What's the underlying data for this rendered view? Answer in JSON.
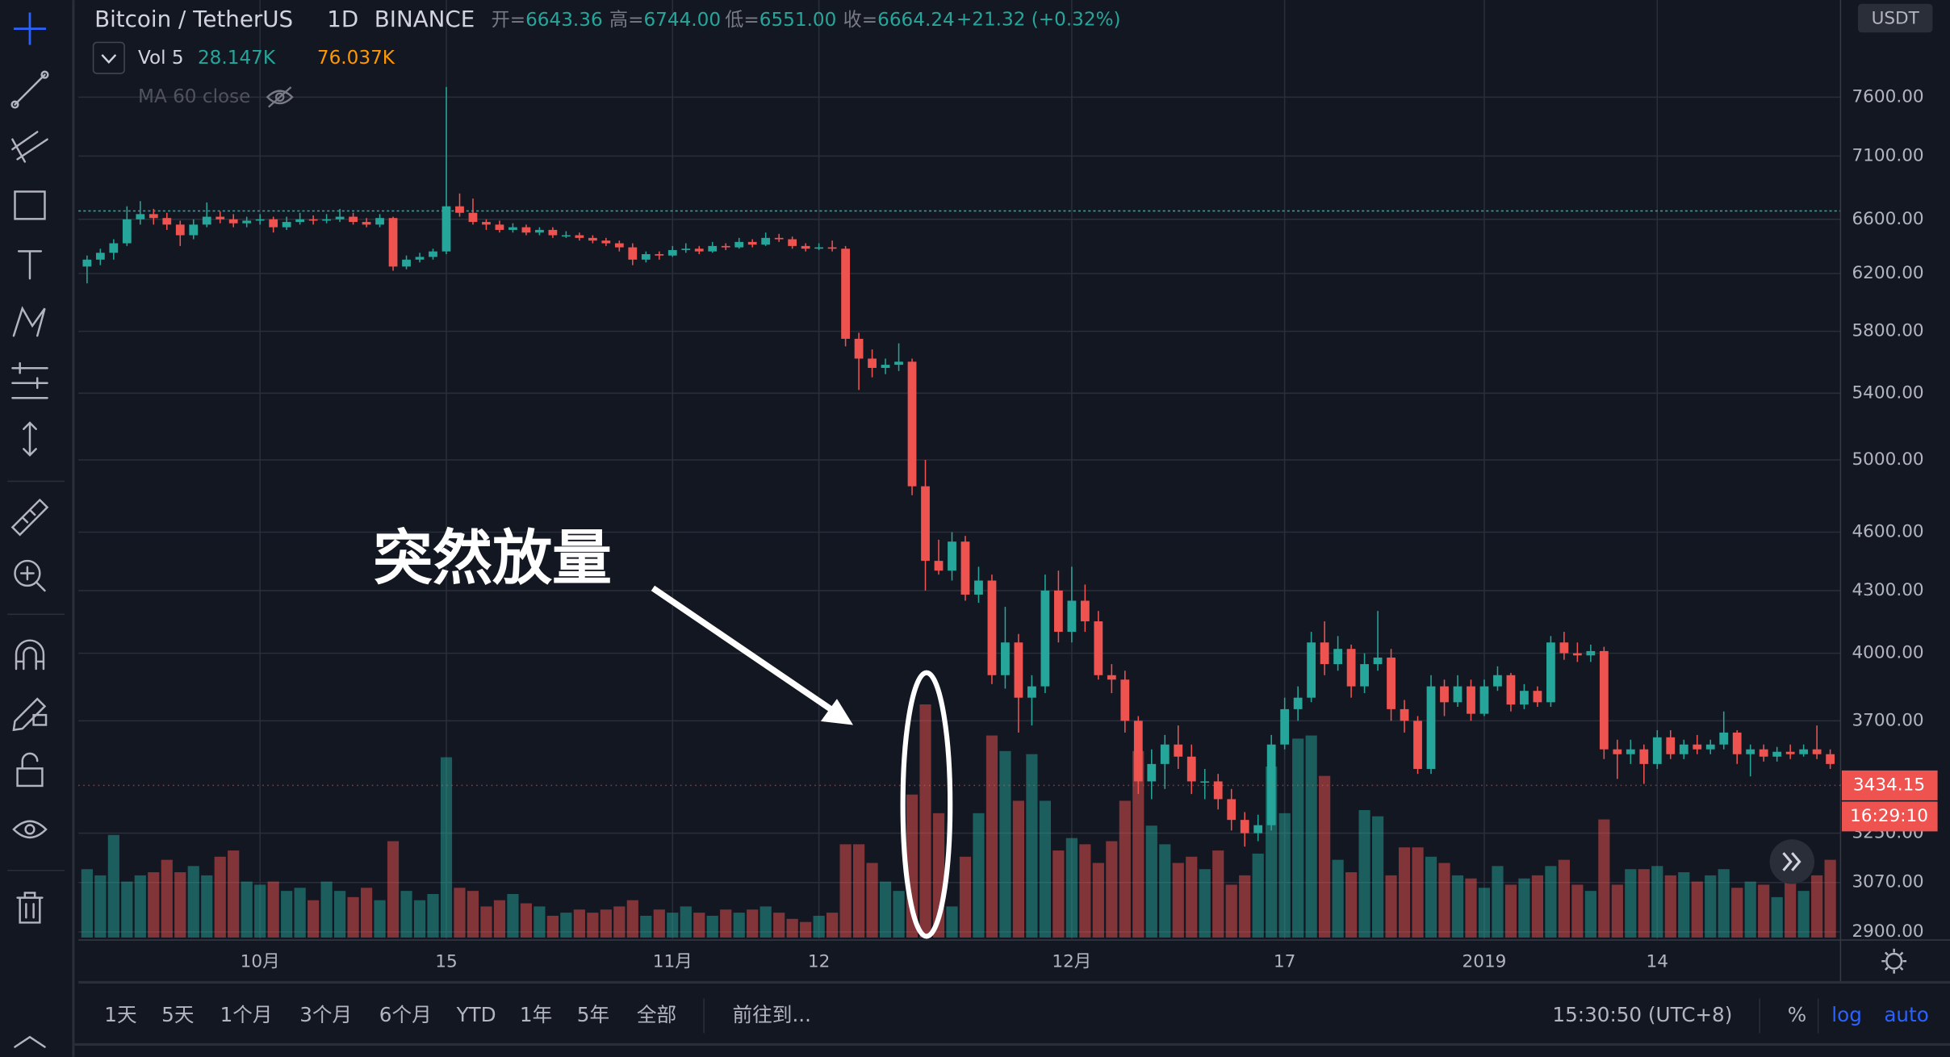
{
  "header": {
    "symbol": "Bitcoin / TetherUS",
    "interval": "1D",
    "exchange": "BINANCE",
    "ohlc": [
      {
        "label": "开=",
        "value": "6643.36"
      },
      {
        "label": "高=",
        "value": "6744.00"
      },
      {
        "label": "低=",
        "value": "6551.00"
      },
      {
        "label": "收=",
        "value": "6664.24"
      }
    ],
    "change": "+21.32 (+0.32%)"
  },
  "indicators": {
    "volume": {
      "name": "Vol 5",
      "values": [
        "28.147K",
        "76.037K"
      ]
    },
    "ma": "MA 60 close"
  },
  "currency": "USDT",
  "countdown": "16:29:10",
  "annotation": "突然放量",
  "bottom_bar": {
    "ranges": [
      "1天",
      "5天",
      "1个月",
      "3个月",
      "6个月",
      "YTD",
      "1年",
      "5年",
      "全部"
    ],
    "goto": "前往到...",
    "time": "15:30:50 (UTC+8)",
    "percent": "%",
    "log": "log",
    "auto": "auto"
  },
  "chart_data": {
    "type": "candlestick",
    "log_scale": true,
    "grid": true,
    "up_color": "#26a69a",
    "down_color": "#ef5350",
    "ylim": [
      2877,
      8500
    ],
    "yticks": [
      {
        "value": 2900,
        "label": "2900.00"
      },
      {
        "value": 3070,
        "label": "3070.00"
      },
      {
        "value": 3250,
        "label": "3250.00"
      },
      {
        "value": 3700,
        "label": "3700.00"
      },
      {
        "value": 4000,
        "label": "4000.00"
      },
      {
        "value": 4300,
        "label": "4300.00"
      },
      {
        "value": 4600,
        "label": "4600.00"
      },
      {
        "value": 5000,
        "label": "5000.00"
      },
      {
        "value": 5400,
        "label": "5400.00"
      },
      {
        "value": 5800,
        "label": "5800.00"
      },
      {
        "value": 6200,
        "label": "6200.00"
      },
      {
        "value": 6600,
        "label": "6600.00"
      },
      {
        "value": 7100,
        "label": "7100.00"
      },
      {
        "value": 7600,
        "label": "7600.00"
      }
    ],
    "price_line": 6664.24,
    "last_price": 3434.15,
    "categories": [
      null,
      null,
      null,
      null,
      null,
      null,
      null,
      null,
      null,
      null,
      null,
      null,
      null,
      "10月",
      null,
      null,
      null,
      null,
      null,
      null,
      null,
      null,
      null,
      null,
      null,
      null,
      null,
      "15",
      null,
      null,
      null,
      null,
      null,
      null,
      null,
      null,
      null,
      null,
      null,
      null,
      null,
      null,
      null,
      null,
      "11月",
      null,
      null,
      null,
      null,
      null,
      null,
      null,
      null,
      null,
      null,
      "12",
      null,
      null,
      null,
      null,
      null,
      null,
      null,
      null,
      null,
      null,
      null,
      null,
      null,
      null,
      null,
      null,
      null,
      null,
      "12月",
      null,
      null,
      null,
      null,
      null,
      null,
      null,
      null,
      null,
      null,
      null,
      null,
      null,
      null,
      null,
      "17",
      null,
      null,
      null,
      null,
      null,
      null,
      null,
      null,
      null,
      null,
      null,
      null,
      null,
      null,
      "2019",
      null,
      null,
      null,
      null,
      null,
      null,
      null,
      null,
      null,
      null,
      null,
      null,
      "14",
      null,
      null,
      null,
      null,
      null,
      null,
      null,
      null,
      null,
      null,
      null,
      null,
      null
    ],
    "ohlc": [
      [
        6250,
        6330,
        6130,
        6300
      ],
      [
        6300,
        6380,
        6260,
        6350
      ],
      [
        6350,
        6450,
        6300,
        6420
      ],
      [
        6420,
        6700,
        6400,
        6600
      ],
      [
        6600,
        6740,
        6560,
        6640
      ],
      [
        6640,
        6680,
        6560,
        6610
      ],
      [
        6610,
        6650,
        6520,
        6560
      ],
      [
        6560,
        6590,
        6400,
        6480
      ],
      [
        6480,
        6600,
        6450,
        6560
      ],
      [
        6560,
        6730,
        6540,
        6620
      ],
      [
        6620,
        6660,
        6570,
        6600
      ],
      [
        6600,
        6640,
        6540,
        6570
      ],
      [
        6570,
        6620,
        6540,
        6590
      ],
      [
        6590,
        6640,
        6560,
        6600
      ],
      [
        6600,
        6620,
        6500,
        6540
      ],
      [
        6540,
        6620,
        6520,
        6580
      ],
      [
        6580,
        6650,
        6560,
        6600
      ],
      [
        6600,
        6630,
        6560,
        6590
      ],
      [
        6590,
        6640,
        6570,
        6600
      ],
      [
        6600,
        6680,
        6580,
        6620
      ],
      [
        6620,
        6650,
        6560,
        6580
      ],
      [
        6580,
        6610,
        6540,
        6560
      ],
      [
        6560,
        6640,
        6540,
        6610
      ],
      [
        6610,
        6620,
        6220,
        6250
      ],
      [
        6250,
        6330,
        6230,
        6300
      ],
      [
        6300,
        6350,
        6280,
        6320
      ],
      [
        6320,
        6380,
        6300,
        6360
      ],
      [
        6360,
        7690,
        6340,
        6700
      ],
      [
        6700,
        6800,
        6620,
        6650
      ],
      [
        6650,
        6760,
        6560,
        6580
      ],
      [
        6580,
        6600,
        6520,
        6560
      ],
      [
        6560,
        6590,
        6500,
        6520
      ],
      [
        6520,
        6570,
        6500,
        6540
      ],
      [
        6540,
        6560,
        6480,
        6500
      ],
      [
        6500,
        6540,
        6480,
        6520
      ],
      [
        6520,
        6540,
        6460,
        6480
      ],
      [
        6480,
        6510,
        6460,
        6480
      ],
      [
        6480,
        6500,
        6440,
        6460
      ],
      [
        6460,
        6480,
        6420,
        6440
      ],
      [
        6440,
        6460,
        6400,
        6420
      ],
      [
        6420,
        6440,
        6360,
        6390
      ],
      [
        6390,
        6420,
        6260,
        6300
      ],
      [
        6300,
        6360,
        6280,
        6340
      ],
      [
        6340,
        6360,
        6300,
        6330
      ],
      [
        6330,
        6400,
        6320,
        6370
      ],
      [
        6370,
        6420,
        6350,
        6380
      ],
      [
        6380,
        6400,
        6340,
        6360
      ],
      [
        6360,
        6430,
        6350,
        6400
      ],
      [
        6400,
        6420,
        6370,
        6390
      ],
      [
        6390,
        6460,
        6380,
        6430
      ],
      [
        6430,
        6450,
        6390,
        6410
      ],
      [
        6410,
        6500,
        6400,
        6460
      ],
      [
        6460,
        6490,
        6430,
        6450
      ],
      [
        6450,
        6470,
        6380,
        6400
      ],
      [
        6400,
        6420,
        6360,
        6380
      ],
      [
        6380,
        6420,
        6370,
        6390
      ],
      [
        6390,
        6440,
        6360,
        6380
      ],
      [
        6380,
        6400,
        5700,
        5750
      ],
      [
        5750,
        5790,
        5420,
        5620
      ],
      [
        5620,
        5680,
        5500,
        5560
      ],
      [
        5560,
        5620,
        5520,
        5580
      ],
      [
        5580,
        5720,
        5540,
        5600
      ],
      [
        5600,
        5620,
        4800,
        4850
      ],
      [
        4850,
        5000,
        4300,
        4450
      ],
      [
        4450,
        4560,
        4380,
        4400
      ],
      [
        4400,
        4600,
        4350,
        4550
      ],
      [
        4550,
        4580,
        4250,
        4280
      ],
      [
        4280,
        4420,
        4240,
        4350
      ],
      [
        4350,
        4380,
        3860,
        3900
      ],
      [
        3900,
        4220,
        3840,
        4050
      ],
      [
        4050,
        4090,
        3650,
        3800
      ],
      [
        3800,
        3900,
        3680,
        3850
      ],
      [
        3850,
        4380,
        3820,
        4300
      ],
      [
        4300,
        4400,
        4050,
        4100
      ],
      [
        4100,
        4420,
        4050,
        4250
      ],
      [
        4250,
        4330,
        4100,
        4150
      ],
      [
        4150,
        4200,
        3880,
        3900
      ],
      [
        3900,
        3950,
        3820,
        3880
      ],
      [
        3880,
        3920,
        3650,
        3700
      ],
      [
        3700,
        3720,
        3400,
        3450
      ],
      [
        3450,
        3580,
        3380,
        3520
      ],
      [
        3520,
        3640,
        3420,
        3600
      ],
      [
        3600,
        3680,
        3500,
        3550
      ],
      [
        3550,
        3600,
        3400,
        3450
      ],
      [
        3450,
        3500,
        3380,
        3450
      ],
      [
        3450,
        3480,
        3340,
        3380
      ],
      [
        3380,
        3420,
        3260,
        3300
      ],
      [
        3300,
        3330,
        3200,
        3250
      ],
      [
        3250,
        3320,
        3220,
        3280
      ],
      [
        3280,
        3640,
        3260,
        3600
      ],
      [
        3600,
        3800,
        3580,
        3750
      ],
      [
        3750,
        3850,
        3700,
        3800
      ],
      [
        3800,
        4100,
        3780,
        4050
      ],
      [
        4050,
        4150,
        3900,
        3950
      ],
      [
        3950,
        4080,
        3920,
        4020
      ],
      [
        4020,
        4040,
        3800,
        3850
      ],
      [
        3850,
        4000,
        3820,
        3950
      ],
      [
        3950,
        4200,
        3920,
        3980
      ],
      [
        3980,
        4020,
        3700,
        3750
      ],
      [
        3750,
        3790,
        3650,
        3700
      ],
      [
        3700,
        3720,
        3480,
        3500
      ],
      [
        3500,
        3900,
        3480,
        3850
      ],
      [
        3850,
        3880,
        3720,
        3780
      ],
      [
        3780,
        3900,
        3760,
        3850
      ],
      [
        3850,
        3880,
        3700,
        3730
      ],
      [
        3730,
        3880,
        3720,
        3850
      ],
      [
        3850,
        3940,
        3830,
        3900
      ],
      [
        3900,
        3910,
        3740,
        3770
      ],
      [
        3770,
        3860,
        3750,
        3830
      ],
      [
        3830,
        3850,
        3760,
        3780
      ],
      [
        3780,
        4080,
        3760,
        4050
      ],
      [
        4050,
        4100,
        3970,
        4000
      ],
      [
        4000,
        4050,
        3960,
        3990
      ],
      [
        3990,
        4040,
        3960,
        4010
      ],
      [
        4010,
        4030,
        3540,
        3580
      ],
      [
        3580,
        3620,
        3460,
        3560
      ],
      [
        3560,
        3620,
        3520,
        3580
      ],
      [
        3580,
        3600,
        3440,
        3520
      ],
      [
        3520,
        3660,
        3500,
        3630
      ],
      [
        3630,
        3660,
        3540,
        3560
      ],
      [
        3560,
        3620,
        3540,
        3600
      ],
      [
        3600,
        3640,
        3560,
        3580
      ],
      [
        3580,
        3620,
        3560,
        3600
      ],
      [
        3600,
        3740,
        3580,
        3650
      ],
      [
        3650,
        3660,
        3520,
        3560
      ],
      [
        3560,
        3600,
        3470,
        3580
      ],
      [
        3580,
        3600,
        3530,
        3550
      ],
      [
        3550,
        3590,
        3530,
        3570
      ],
      [
        3570,
        3600,
        3540,
        3560
      ],
      [
        3560,
        3600,
        3550,
        3580
      ],
      [
        3580,
        3680,
        3540,
        3560
      ],
      [
        3560,
        3580,
        3500,
        3520
      ]
    ],
    "volume": [
      22,
      20,
      33,
      18,
      20,
      21,
      25,
      21,
      23,
      20,
      26,
      28,
      18,
      17,
      18,
      15,
      16,
      12,
      18,
      15,
      13,
      16,
      12,
      31,
      15,
      12,
      14,
      58,
      16,
      15,
      10,
      12,
      14,
      11,
      10,
      7,
      8,
      9,
      8,
      9,
      10,
      12,
      7,
      9,
      8,
      10,
      8,
      7,
      9,
      8,
      9,
      10,
      8,
      6,
      5,
      7,
      8,
      30,
      30,
      24,
      18,
      15,
      46,
      75,
      40,
      10,
      26,
      40,
      65,
      60,
      44,
      59,
      44,
      28,
      32,
      30,
      24,
      31,
      44,
      60,
      36,
      30,
      24,
      26,
      22,
      28,
      17,
      20,
      27,
      55,
      40,
      64,
      65,
      52,
      25,
      21,
      41,
      39,
      20,
      29,
      29,
      26,
      24,
      20,
      19,
      16,
      23,
      17,
      19,
      20,
      23,
      25,
      17,
      15,
      38,
      17,
      22,
      22,
      23,
      20,
      21,
      18,
      20,
      22,
      16,
      18,
      17,
      13,
      20,
      15,
      20,
      25
    ]
  }
}
